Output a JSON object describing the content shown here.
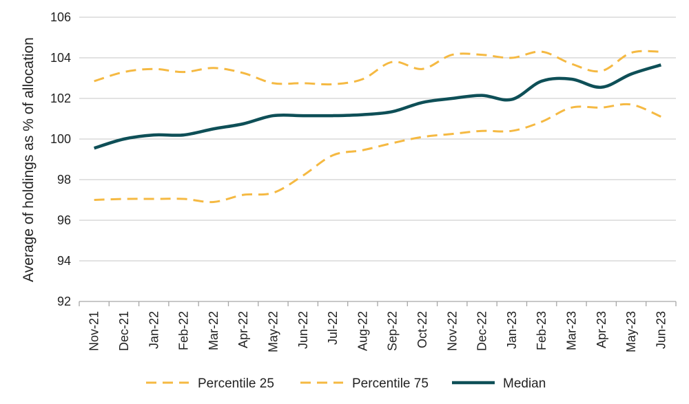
{
  "chart_data": {
    "type": "line",
    "title": "",
    "xlabel": "",
    "ylabel": "Average of holdings as % of allocation",
    "ylim": [
      92,
      106
    ],
    "yticks": [
      92,
      94,
      96,
      98,
      100,
      102,
      104,
      106
    ],
    "grid": true,
    "legend_position": "bottom",
    "categories": [
      "Nov-21",
      "Dec-21",
      "Jan-22",
      "Feb-22",
      "Mar-22",
      "Apr-22",
      "May-22",
      "Jun-22",
      "Jul-22",
      "Aug-22",
      "Sep-22",
      "Oct-22",
      "Nov-22",
      "Dec-22",
      "Jan-23",
      "Feb-23",
      "Mar-23",
      "Apr-23",
      "May-23",
      "Jun-23"
    ],
    "series": [
      {
        "name": "Percentile 25",
        "color": "#F5B942",
        "style": "dashed",
        "values": [
          97.0,
          97.05,
          97.05,
          97.05,
          96.9,
          97.25,
          97.35,
          98.2,
          99.2,
          99.45,
          99.8,
          100.1,
          100.25,
          100.4,
          100.4,
          100.85,
          101.55,
          101.55,
          101.7,
          101.1
        ]
      },
      {
        "name": "Percentile 75",
        "color": "#F5B942",
        "style": "dashed",
        "values": [
          102.85,
          103.3,
          103.45,
          103.3,
          103.5,
          103.25,
          102.75,
          102.75,
          102.7,
          102.95,
          103.8,
          103.45,
          104.15,
          104.15,
          104.0,
          104.3,
          103.7,
          103.35,
          104.25,
          104.3
        ]
      },
      {
        "name": "Median",
        "color": "#0E4F57",
        "style": "solid",
        "values": [
          99.55,
          100.0,
          100.2,
          100.2,
          100.5,
          100.75,
          101.15,
          101.15,
          101.15,
          101.2,
          101.35,
          101.8,
          102.0,
          102.15,
          101.95,
          102.85,
          102.95,
          102.55,
          103.2,
          103.65
        ]
      }
    ]
  }
}
